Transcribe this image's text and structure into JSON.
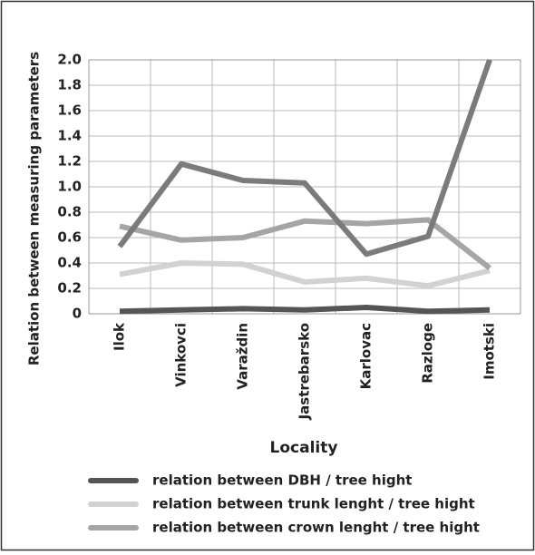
{
  "chart_data": {
    "type": "line",
    "x_label": "Locality",
    "y_label": "Relation between measuring parameters",
    "categories": [
      "Ilok",
      "Vinkovci",
      "Varaždin",
      "Jastrebarsko",
      "Karlovac",
      "Razloge",
      "Imotski"
    ],
    "series": [
      {
        "name": "relation between DBH / tree hight",
        "color": "#555555",
        "values": [
          0.02,
          0.03,
          0.04,
          0.03,
          0.05,
          0.02,
          0.03
        ]
      },
      {
        "name": "relation between trunk lenght / tree hight",
        "color": "#d2d2d2",
        "values": [
          0.31,
          0.4,
          0.39,
          0.25,
          0.28,
          0.22,
          0.34
        ]
      },
      {
        "name": "relation between crown lenght / tree hight",
        "color": "#a5a5a5",
        "values": [
          0.69,
          0.58,
          0.6,
          0.73,
          0.71,
          0.74,
          0.36
        ]
      },
      {
        "color": "#7b7b7b",
        "values": [
          0.53,
          1.18,
          1.05,
          1.03,
          0.47,
          0.61,
          2.0
        ]
      }
    ],
    "ylim": [
      0,
      2.0
    ],
    "yticks": [
      0,
      0.2,
      0.4,
      0.6,
      0.8,
      {
        "value": 1.0,
        "label": "1.0"
      },
      1.2,
      1.4,
      1.6,
      1.8,
      {
        "value": 2.0,
        "label": "2.0"
      }
    ],
    "grid": true
  }
}
